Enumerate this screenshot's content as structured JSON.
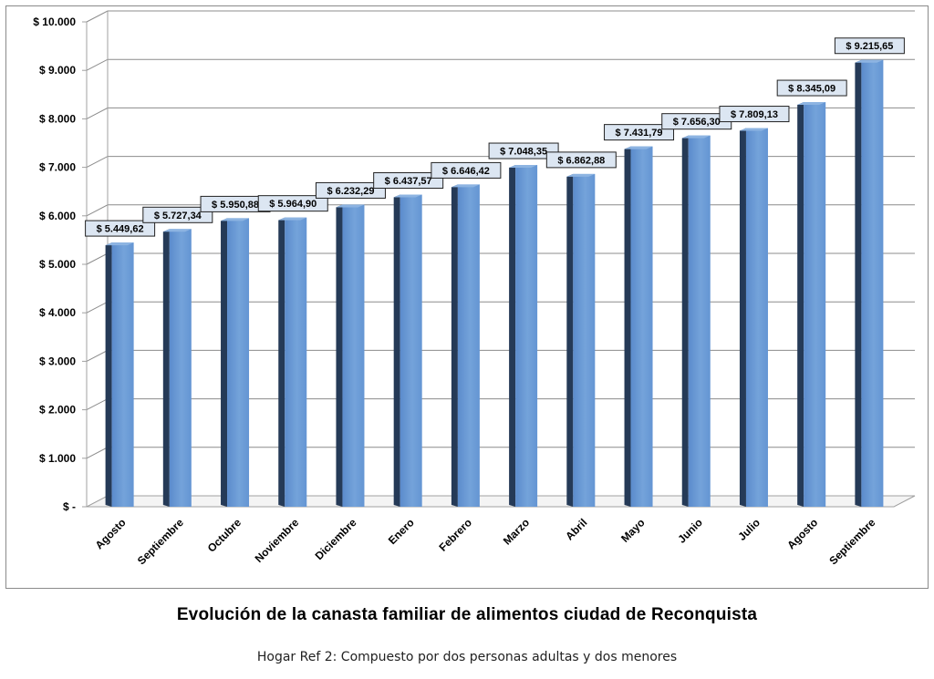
{
  "chart_data": {
    "type": "bar",
    "title": "Evolución de la canasta familiar de alimentos ciudad de Reconquista",
    "subtitle": "Hogar Ref 2: Compuesto por dos personas adultas y dos menores",
    "xlabel": "",
    "ylabel": "",
    "categories": [
      "Agosto",
      "Septiembre",
      "Octubre",
      "Noviembre",
      "Diciembre",
      "Enero",
      "Febrero",
      "Marzo",
      "Abril",
      "Mayo",
      "Junio",
      "Julio",
      "Agosto",
      "Septiembre"
    ],
    "values": [
      5449.62,
      5727.34,
      5950.88,
      5964.9,
      6232.29,
      6437.57,
      6646.42,
      7048.35,
      6862.88,
      7431.79,
      7656.3,
      7809.13,
      8345.09,
      9215.65
    ],
    "value_labels": [
      "$ 5.449,62",
      "$ 5.727,34",
      "$ 5.950,88",
      "$ 5.964,90",
      "$ 6.232,29",
      "$ 6.437,57",
      "$ 6.646,42",
      "$ 7.048,35",
      "$ 6.862,88",
      "$ 7.431,79",
      "$ 7.656,30",
      "$ 7.809,13",
      "$ 8.345,09",
      "$ 9.215,65"
    ],
    "ylim": [
      0,
      10000
    ],
    "yticks": [
      0,
      1000,
      2000,
      3000,
      4000,
      5000,
      6000,
      7000,
      8000,
      9000,
      10000
    ],
    "ytick_labels": [
      "$ -",
      "$ 1.000",
      "$ 2.000",
      "$ 3.000",
      "$ 4.000",
      "$ 5.000",
      "$ 6.000",
      "$ 7.000",
      "$ 8.000",
      "$ 9.000",
      "$ 10.000"
    ],
    "grid": true,
    "legend": "none",
    "colors": {
      "bar_front": "#6a9bd6",
      "bar_side": "#253a57",
      "bar_top": "#8db4e2",
      "label_bg": "#dce6f2",
      "grid": "#8c8c8c",
      "axis": "#a0a0a0"
    }
  }
}
